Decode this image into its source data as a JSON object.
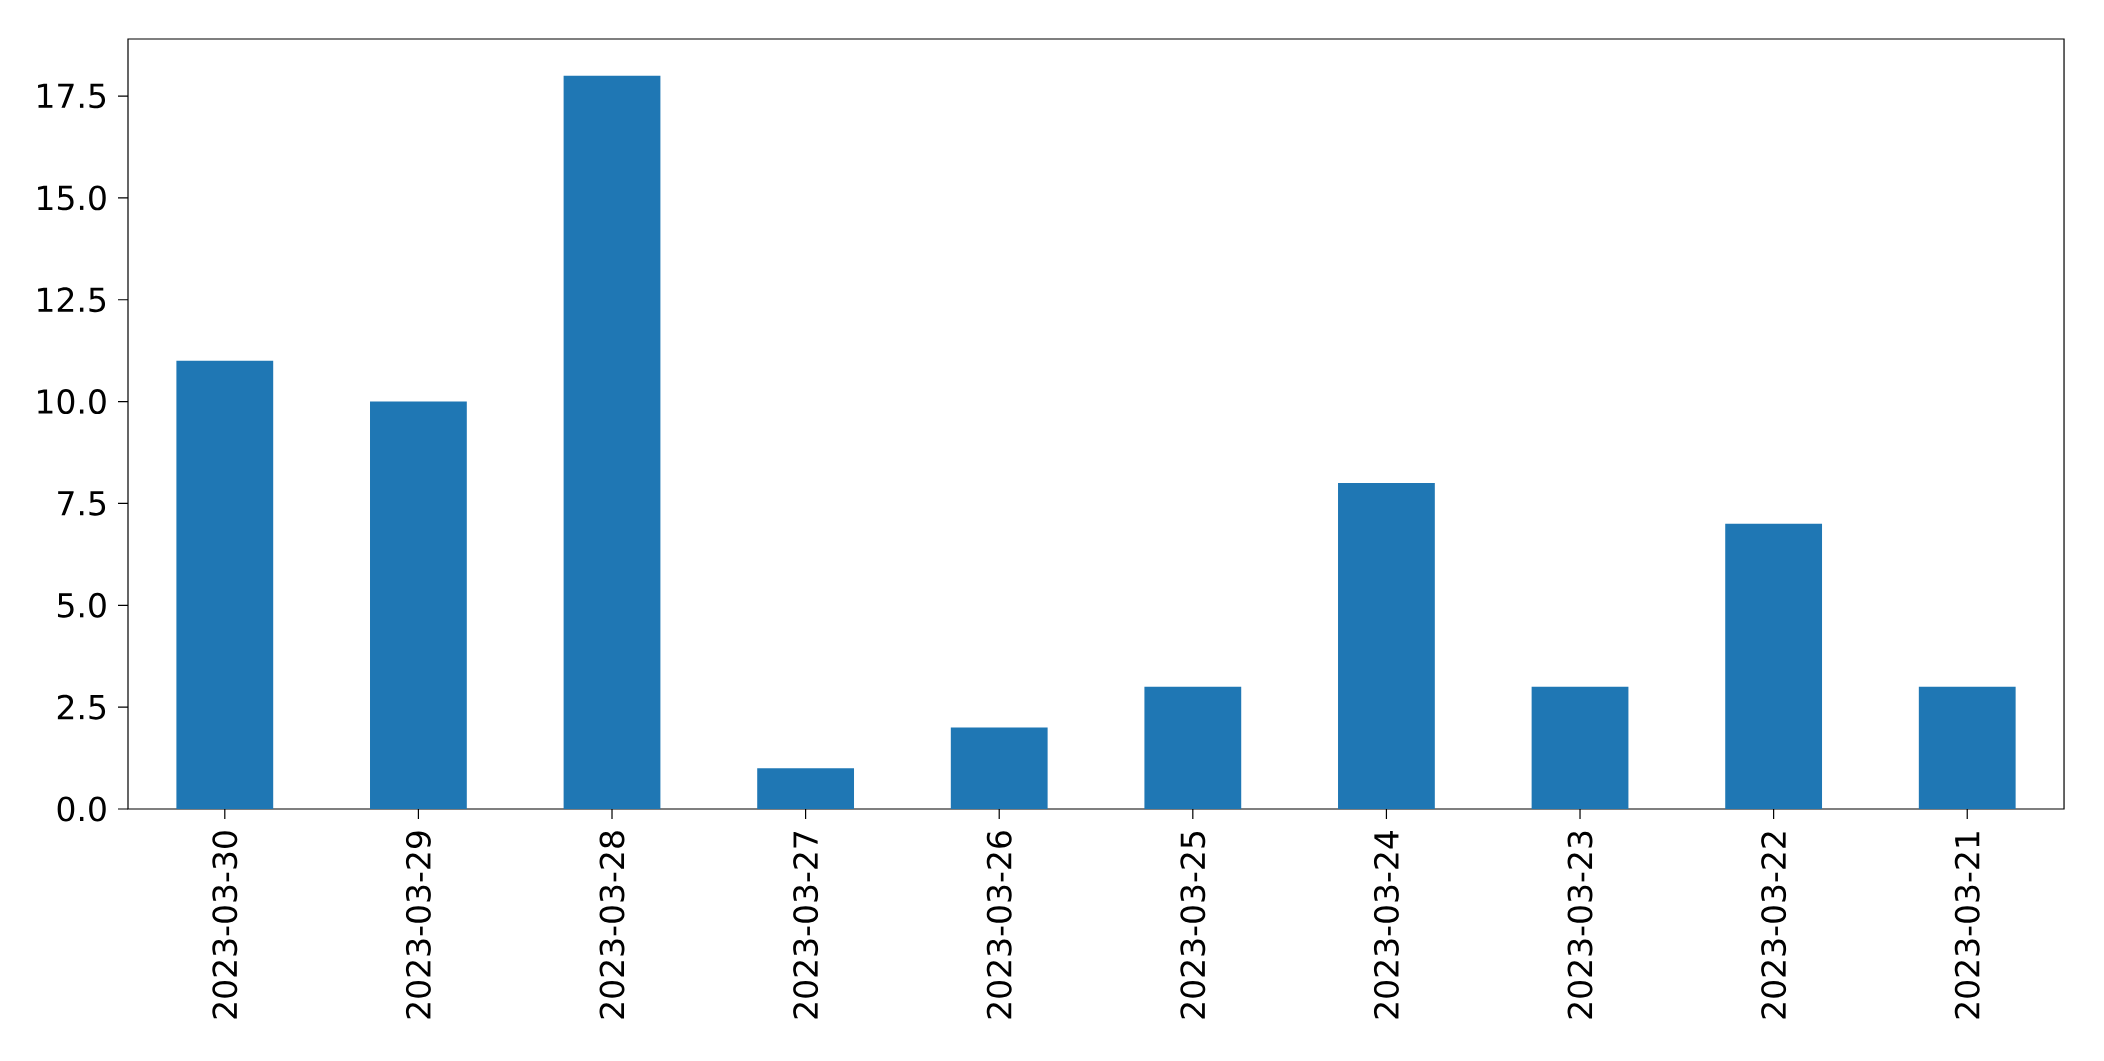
{
  "chart_data": {
    "type": "bar",
    "categories": [
      "2023-03-30",
      "2023-03-29",
      "2023-03-28",
      "2023-03-27",
      "2023-03-26",
      "2023-03-25",
      "2023-03-24",
      "2023-03-23",
      "2023-03-22",
      "2023-03-21"
    ],
    "values": [
      11,
      10,
      18,
      1,
      2,
      3,
      8,
      3,
      7,
      3
    ],
    "color": "#1f77b4",
    "ylim": [
      0,
      18.9
    ],
    "yticks": [
      {
        "value": 0,
        "label": "0.0"
      },
      {
        "value": 2.5,
        "label": "2.5"
      },
      {
        "value": 5,
        "label": "5.0"
      },
      {
        "value": 7.5,
        "label": "7.5"
      },
      {
        "value": 10,
        "label": "10.0"
      },
      {
        "value": 12.5,
        "label": "12.5"
      },
      {
        "value": 15,
        "label": "15.0"
      },
      {
        "value": 17.5,
        "label": "17.5"
      }
    ],
    "grid": false
  }
}
